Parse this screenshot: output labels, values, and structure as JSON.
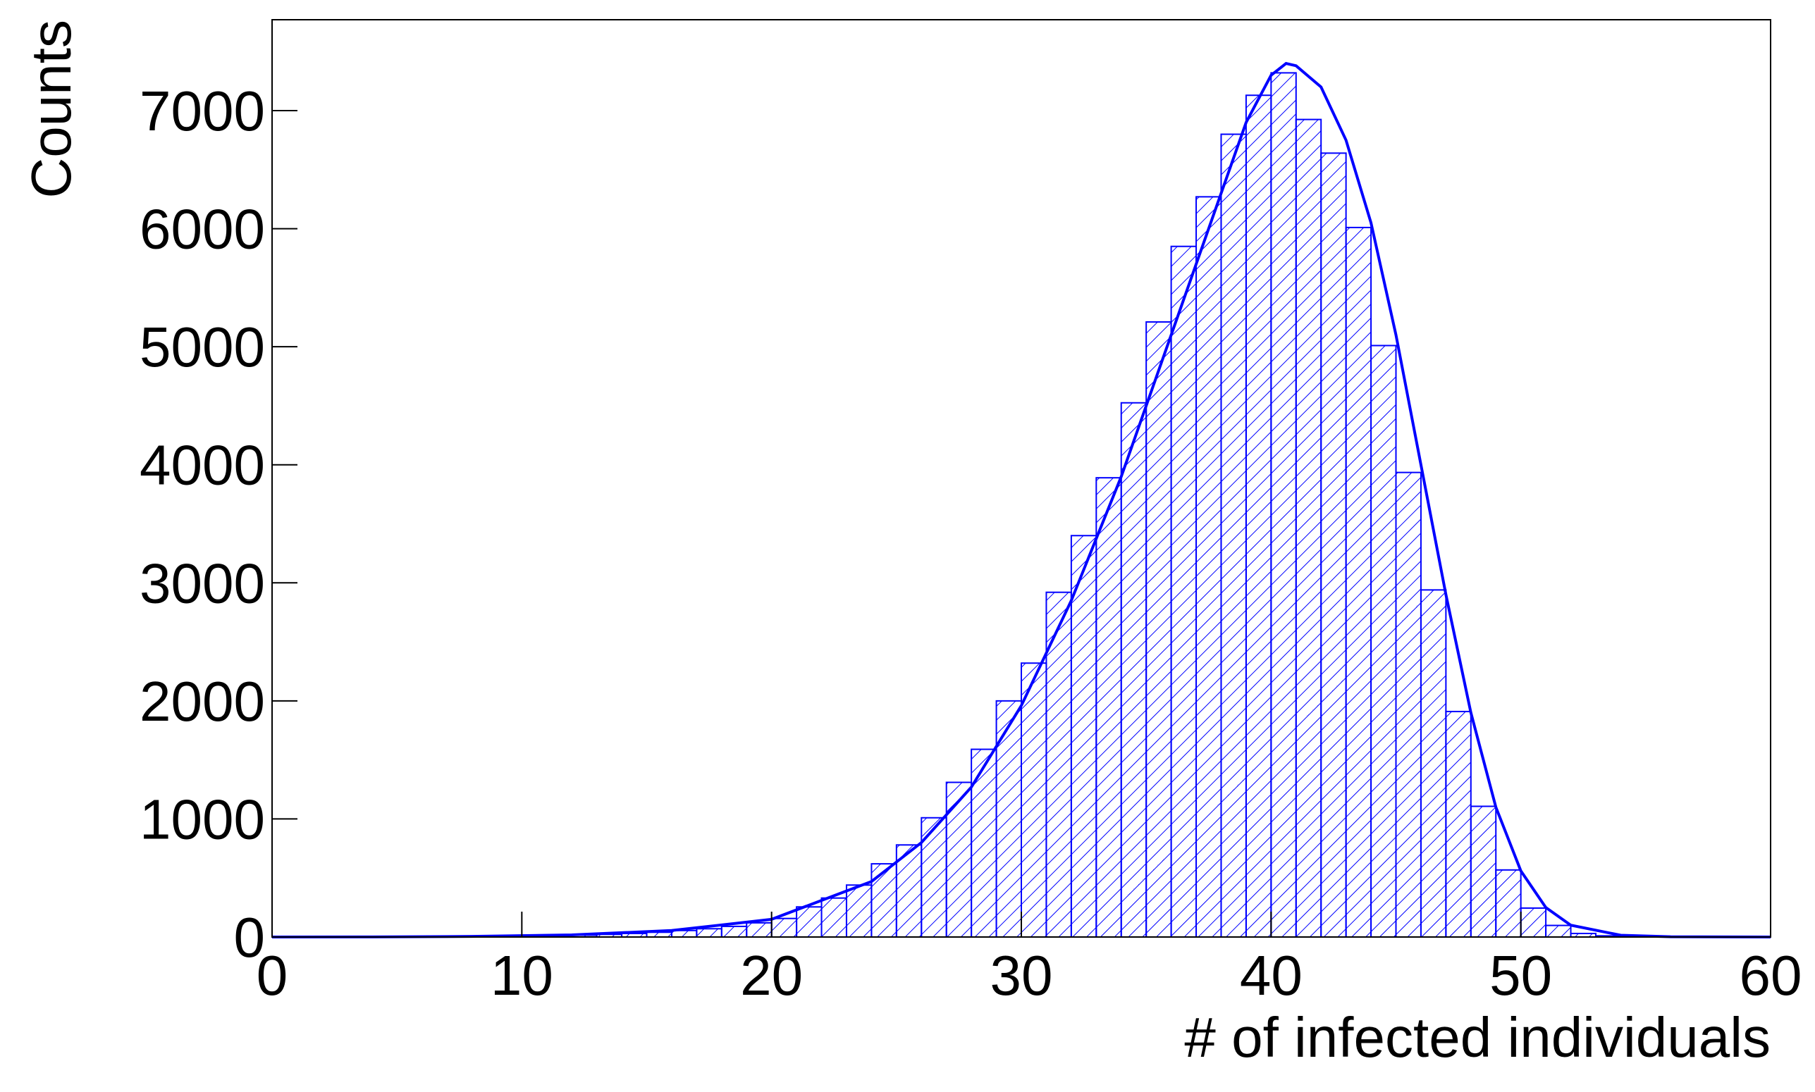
{
  "chart_data": {
    "type": "histogram",
    "xlabel": "# of infected individuals",
    "ylabel": "Counts",
    "bins": [
      0,
      1,
      2,
      3,
      4,
      5,
      6,
      7,
      8,
      9,
      10,
      11,
      12,
      13,
      14,
      15,
      16,
      17,
      18,
      19,
      20,
      21,
      22,
      23,
      24,
      25,
      26,
      27,
      28,
      29,
      30,
      31,
      32,
      33,
      34,
      35,
      36,
      37,
      38,
      39,
      40,
      41,
      42,
      43,
      44,
      45,
      46,
      47,
      48,
      49,
      50,
      51,
      52,
      53,
      54,
      55,
      56,
      57,
      58,
      59,
      60
    ],
    "counts": [
      0,
      0,
      0,
      0,
      0,
      0,
      0,
      2,
      3,
      5,
      7,
      10,
      15,
      22,
      30,
      40,
      55,
      70,
      90,
      120,
      157,
      255,
      330,
      440,
      620,
      780,
      1010,
      1310,
      1590,
      2000,
      2320,
      2920,
      3400,
      3890,
      4525,
      5210,
      5850,
      6270,
      6800,
      7130,
      7320,
      6925,
      6640,
      6010,
      5010,
      3935,
      2940,
      1910,
      1107,
      568,
      245,
      98,
      30,
      10,
      3,
      0,
      0,
      0,
      0,
      0
    ],
    "color": "#0000ff",
    "fit": {
      "x": [
        0,
        4,
        8,
        12,
        16,
        20,
        24,
        26,
        28,
        30,
        32,
        34,
        36,
        38,
        39,
        40,
        40.6,
        41,
        42,
        43,
        44,
        45,
        46,
        47,
        48,
        49,
        50,
        51,
        52,
        54,
        56,
        60
      ],
      "values": [
        0,
        1,
        5,
        18,
        55,
        150,
        470,
        800,
        1270,
        1960,
        2850,
        3900,
        5100,
        6300,
        6900,
        7300,
        7400,
        7380,
        7200,
        6750,
        6050,
        5100,
        4000,
        2900,
        1900,
        1100,
        560,
        250,
        100,
        15,
        2,
        0
      ]
    },
    "xlim": [
      0,
      60
    ],
    "ylim": [
      0,
      7770
    ],
    "xticks": [
      0,
      10,
      20,
      30,
      40,
      50,
      60
    ],
    "yticks": [
      0,
      1000,
      2000,
      3000,
      4000,
      5000,
      6000,
      7000
    ]
  }
}
